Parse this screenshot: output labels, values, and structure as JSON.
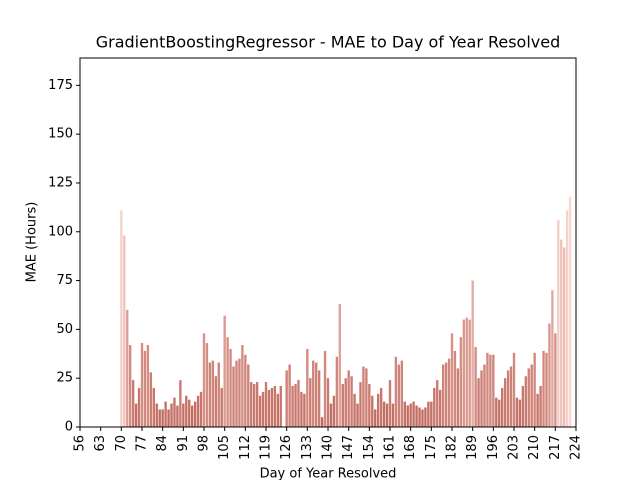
{
  "chart_data": {
    "type": "bar",
    "title": "GradientBoostingRegressor - MAE to Day of Year Resolved",
    "x_label": "Day of Year Resolved",
    "y_label": "MAE (Hours)",
    "x": [
      70,
      71,
      72,
      73,
      74,
      75,
      76,
      77,
      78,
      79,
      80,
      81,
      82,
      83,
      84,
      85,
      86,
      87,
      88,
      89,
      90,
      91,
      92,
      93,
      94,
      95,
      96,
      97,
      98,
      99,
      100,
      101,
      102,
      103,
      104,
      105,
      106,
      107,
      108,
      109,
      110,
      111,
      112,
      113,
      114,
      115,
      116,
      117,
      118,
      119,
      120,
      121,
      122,
      123,
      124,
      125,
      126,
      127,
      128,
      129,
      130,
      131,
      132,
      133,
      134,
      135,
      136,
      137,
      138,
      139,
      140,
      141,
      142,
      143,
      144,
      145,
      146,
      147,
      148,
      149,
      150,
      151,
      152,
      153,
      154,
      155,
      156,
      157,
      158,
      159,
      160,
      161,
      162,
      163,
      164,
      165,
      166,
      167,
      168,
      169,
      170,
      171,
      172,
      173,
      174,
      175,
      176,
      177,
      178,
      179,
      180,
      181,
      182,
      183,
      184,
      185,
      186,
      187,
      188,
      189,
      190,
      191,
      192,
      193,
      194,
      195,
      196,
      197,
      198,
      199,
      200,
      201,
      202,
      203,
      204,
      205,
      206,
      207,
      208,
      209,
      210,
      211,
      212,
      213,
      214,
      215,
      216,
      217,
      218,
      219,
      220,
      221,
      222,
      223,
      224
    ],
    "values": [
      111,
      98,
      60,
      42,
      24,
      12,
      20,
      43,
      39,
      42,
      28,
      20,
      12,
      9,
      9,
      13,
      9,
      12,
      15,
      11,
      24,
      12,
      16,
      14,
      11,
      13,
      16,
      18,
      48,
      43,
      33,
      34,
      26,
      33,
      20,
      57,
      46,
      40,
      31,
      34,
      35,
      42,
      37,
      32,
      23,
      22,
      23,
      16,
      18,
      23,
      19,
      20,
      21,
      17,
      21,
      null,
      29,
      32,
      21,
      22,
      24,
      18,
      17,
      40,
      25,
      34,
      33,
      29,
      5,
      39,
      25,
      12,
      16,
      36,
      63,
      22,
      25,
      29,
      26,
      17,
      12,
      23,
      31,
      30,
      22,
      16,
      9,
      17,
      20,
      13,
      12,
      24,
      12,
      36,
      32,
      34,
      13,
      11,
      12,
      13,
      11,
      10,
      9,
      10,
      13,
      13,
      20,
      24,
      19,
      32,
      33,
      35,
      48,
      39,
      30,
      46,
      55,
      56,
      55,
      75,
      41,
      25,
      29,
      32,
      38,
      37,
      37,
      15,
      14,
      20,
      25,
      29,
      31,
      38,
      15,
      14,
      21,
      26,
      30,
      32,
      38,
      17,
      21,
      39,
      38,
      53,
      70,
      48,
      106,
      96,
      92,
      111,
      118,
      null,
      null
    ],
    "color_low": "#c0675c",
    "color_high": "#fad8d1",
    "xlim": [
      56,
      224
    ],
    "xticks": [
      56,
      63,
      70,
      77,
      84,
      91,
      98,
      105,
      112,
      119,
      126,
      133,
      140,
      147,
      154,
      161,
      168,
      175,
      182,
      189,
      196,
      203,
      210,
      217,
      224
    ],
    "ylim": [
      0,
      189
    ],
    "yticks": [
      0,
      25,
      50,
      75,
      100,
      125,
      150,
      175
    ]
  }
}
